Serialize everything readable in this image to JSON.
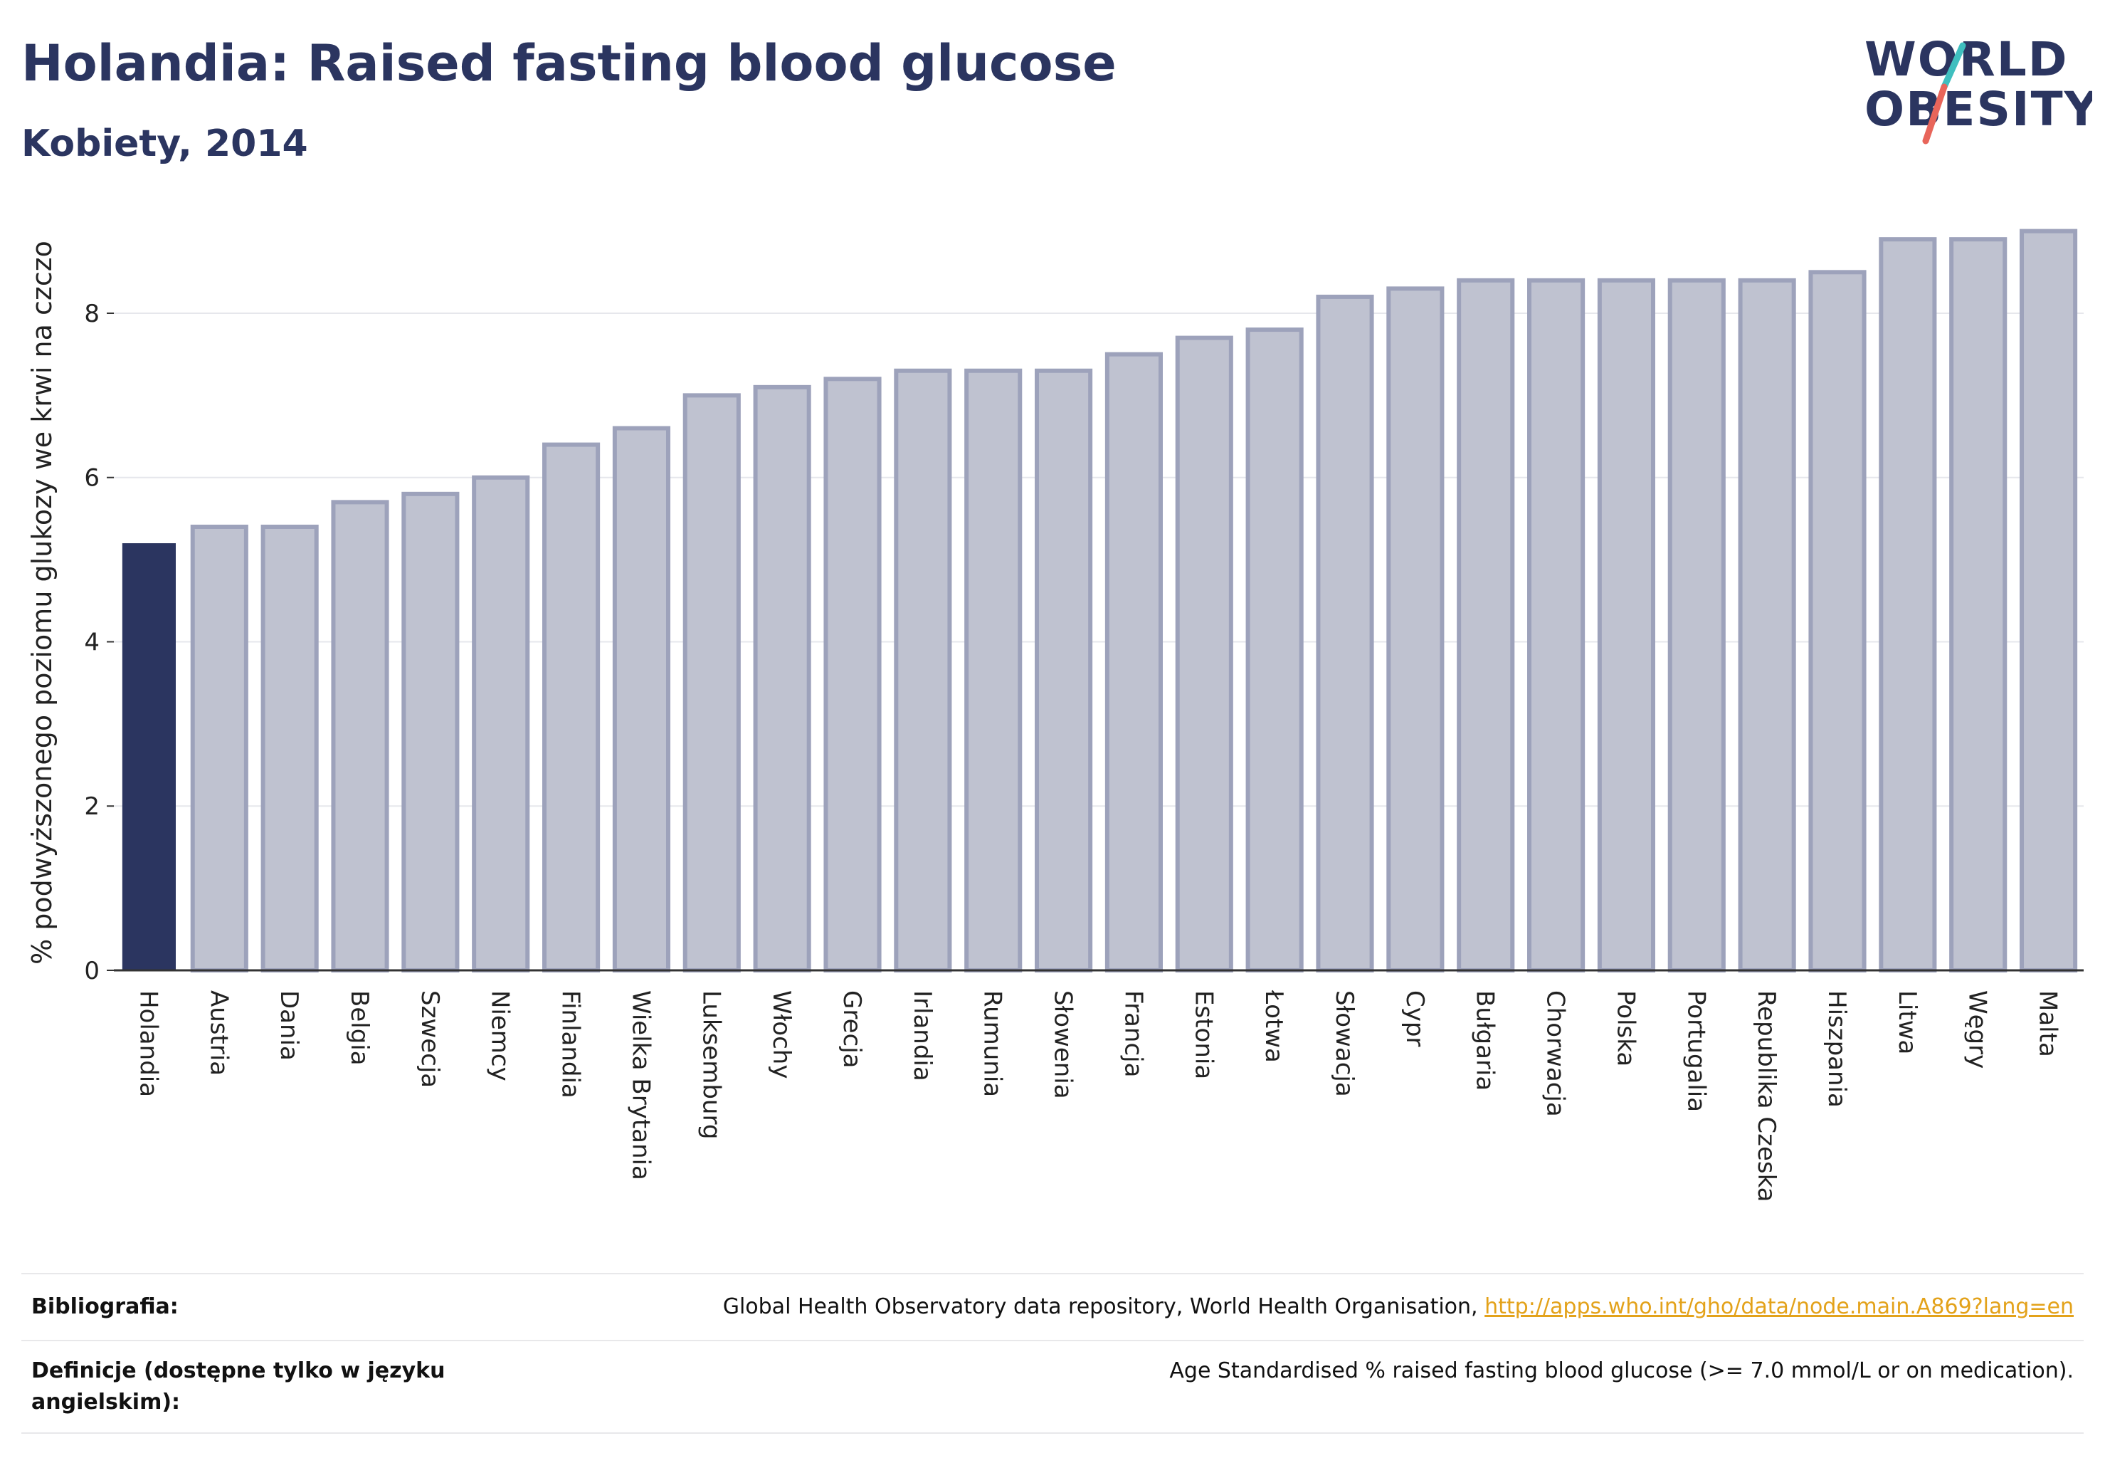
{
  "header": {
    "title": "Holandia: Raised fasting blood glucose",
    "subtitle": "Kobiety, 2014"
  },
  "logo": {
    "line1": "WORLD",
    "line2": "OBESITY",
    "slash_colors": [
      "#3fbfbf",
      "#e8655a"
    ]
  },
  "colors": {
    "highlight": "#2b3560",
    "bar_fill": "#bfc2d0",
    "bar_stroke": "#9da2bb",
    "grid": "#e6e7ec"
  },
  "chart_data": {
    "type": "bar",
    "title": "Holandia: Raised fasting blood glucose",
    "subtitle": "Kobiety, 2014",
    "xlabel": "",
    "ylabel": "% podwyższonego poziomu glukozy we krwi na czczo",
    "ylim": [
      0,
      9.3
    ],
    "yticks": [
      0,
      2,
      4,
      6,
      8
    ],
    "grid": true,
    "highlight_category": "Holandia",
    "categories": [
      "Holandia",
      "Austria",
      "Dania",
      "Belgia",
      "Szwecja",
      "Niemcy",
      "Finlandia",
      "Wielka Brytania",
      "Luksemburg",
      "Włochy",
      "Grecja",
      "Irlandia",
      "Rumunia",
      "Słowenia",
      "Francja",
      "Estonia",
      "Łotwa",
      "Słowacja",
      "Cypr",
      "Bułgaria",
      "Chorwacja",
      "Polska",
      "Portugalia",
      "Republika Czeska",
      "Hiszpania",
      "Litwa",
      "Węgry",
      "Malta"
    ],
    "values": [
      5.2,
      5.4,
      5.4,
      5.7,
      5.8,
      6.0,
      6.4,
      6.6,
      7.0,
      7.1,
      7.2,
      7.3,
      7.3,
      7.3,
      7.5,
      7.7,
      7.8,
      8.2,
      8.3,
      8.4,
      8.4,
      8.4,
      8.4,
      8.4,
      8.5,
      8.9,
      8.9,
      9.0
    ]
  },
  "footer": {
    "bibliography_label": "Bibliografia:",
    "bibliography_text": "Global Health Observatory data repository, World Health Organisation,",
    "bibliography_link": "http://apps.who.int/gho/data/node.main.A869?lang=en",
    "definitions_label": "Definicje (dostępne tylko w języku angielskim):",
    "definitions_text": "Age Standardised % raised fasting blood glucose (>= 7.0 mmol/L or on medication)."
  }
}
